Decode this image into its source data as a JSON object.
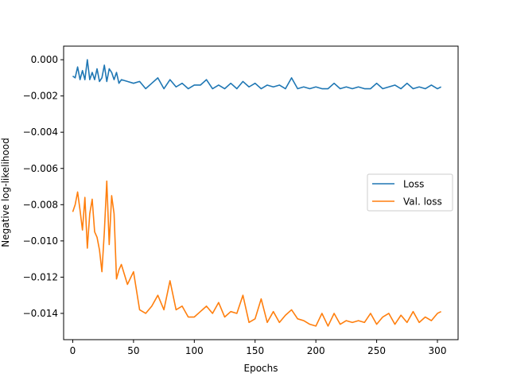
{
  "chart_data": {
    "type": "line",
    "title": "",
    "xlabel": "Epochs",
    "ylabel": "Negative log-likelihood",
    "xlim": [
      -7.5,
      317
    ],
    "ylim": [
      -0.01545,
      0.00075
    ],
    "xticks": [
      0,
      50,
      100,
      150,
      200,
      250,
      300
    ],
    "xtick_labels": [
      "0",
      "50",
      "100",
      "150",
      "200",
      "250",
      "300"
    ],
    "yticks": [
      0.0,
      -0.002,
      -0.004,
      -0.006,
      -0.008,
      -0.01,
      -0.012,
      -0.014
    ],
    "ytick_labels": [
      "0.000",
      "−0.002",
      "−0.004",
      "−0.006",
      "−0.008",
      "−0.010",
      "−0.012",
      "−0.014"
    ],
    "grid": false,
    "legend_position": "center-right",
    "series": [
      {
        "name": "Loss",
        "color": "#1f77b4",
        "x": [
          0,
          2,
          4,
          6,
          8,
          10,
          12,
          14,
          16,
          18,
          20,
          22,
          24,
          26,
          28,
          30,
          32,
          34,
          36,
          38,
          40,
          45,
          50,
          55,
          60,
          65,
          70,
          75,
          80,
          85,
          90,
          95,
          100,
          105,
          110,
          115,
          120,
          125,
          130,
          135,
          140,
          145,
          150,
          155,
          160,
          165,
          170,
          175,
          180,
          185,
          190,
          195,
          200,
          205,
          210,
          215,
          220,
          225,
          230,
          235,
          240,
          245,
          250,
          255,
          260,
          265,
          270,
          275,
          280,
          285,
          290,
          295,
          300,
          303
        ],
        "y": [
          -0.0009,
          -0.001,
          -0.0004,
          -0.0011,
          -0.0006,
          -0.0011,
          0.0,
          -0.0011,
          -0.0007,
          -0.0011,
          -0.0005,
          -0.0012,
          -0.001,
          -0.0003,
          -0.0012,
          -0.0005,
          -0.0007,
          -0.0011,
          -0.0007,
          -0.0013,
          -0.0011,
          -0.0012,
          -0.0013,
          -0.0012,
          -0.0016,
          -0.0013,
          -0.001,
          -0.0016,
          -0.0011,
          -0.0015,
          -0.0013,
          -0.0016,
          -0.0014,
          -0.0014,
          -0.0011,
          -0.0016,
          -0.0014,
          -0.0016,
          -0.0013,
          -0.0016,
          -0.0012,
          -0.0015,
          -0.0013,
          -0.0016,
          -0.0014,
          -0.0015,
          -0.0014,
          -0.0016,
          -0.001,
          -0.0016,
          -0.0015,
          -0.0016,
          -0.0015,
          -0.0016,
          -0.0016,
          -0.0013,
          -0.0016,
          -0.0015,
          -0.0016,
          -0.0015,
          -0.0016,
          -0.0016,
          -0.0013,
          -0.0016,
          -0.0015,
          -0.0014,
          -0.0016,
          -0.0013,
          -0.0016,
          -0.0015,
          -0.0016,
          -0.0014,
          -0.0016,
          -0.0015
        ]
      },
      {
        "name": "Val. loss",
        "color": "#ff7f0e",
        "x": [
          0,
          2,
          4,
          6,
          8,
          10,
          12,
          14,
          16,
          18,
          20,
          22,
          24,
          26,
          28,
          30,
          32,
          34,
          36,
          38,
          40,
          45,
          50,
          55,
          60,
          65,
          70,
          75,
          80,
          85,
          90,
          95,
          100,
          105,
          110,
          115,
          120,
          125,
          130,
          135,
          140,
          145,
          150,
          155,
          160,
          165,
          170,
          175,
          180,
          185,
          190,
          195,
          200,
          205,
          210,
          215,
          220,
          225,
          230,
          235,
          240,
          245,
          250,
          255,
          260,
          265,
          270,
          275,
          280,
          285,
          290,
          295,
          300,
          303
        ],
        "y": [
          -0.0084,
          -0.008,
          -0.0073,
          -0.0083,
          -0.0094,
          -0.0076,
          -0.0104,
          -0.0085,
          -0.0077,
          -0.0095,
          -0.0098,
          -0.0105,
          -0.0117,
          -0.0095,
          -0.0067,
          -0.0102,
          -0.0075,
          -0.0085,
          -0.0121,
          -0.0116,
          -0.0113,
          -0.0124,
          -0.0117,
          -0.0138,
          -0.014,
          -0.0136,
          -0.013,
          -0.0138,
          -0.0122,
          -0.0138,
          -0.0136,
          -0.0142,
          -0.0142,
          -0.0139,
          -0.0136,
          -0.014,
          -0.0134,
          -0.0142,
          -0.0139,
          -0.014,
          -0.013,
          -0.0145,
          -0.0143,
          -0.0132,
          -0.0145,
          -0.0139,
          -0.0145,
          -0.0141,
          -0.0138,
          -0.0143,
          -0.0144,
          -0.0146,
          -0.0147,
          -0.014,
          -0.0147,
          -0.014,
          -0.0146,
          -0.0144,
          -0.0145,
          -0.0144,
          -0.0145,
          -0.014,
          -0.0146,
          -0.0142,
          -0.014,
          -0.0146,
          -0.0141,
          -0.0145,
          -0.0139,
          -0.0145,
          -0.0142,
          -0.0144,
          -0.014,
          -0.0139
        ]
      }
    ]
  }
}
